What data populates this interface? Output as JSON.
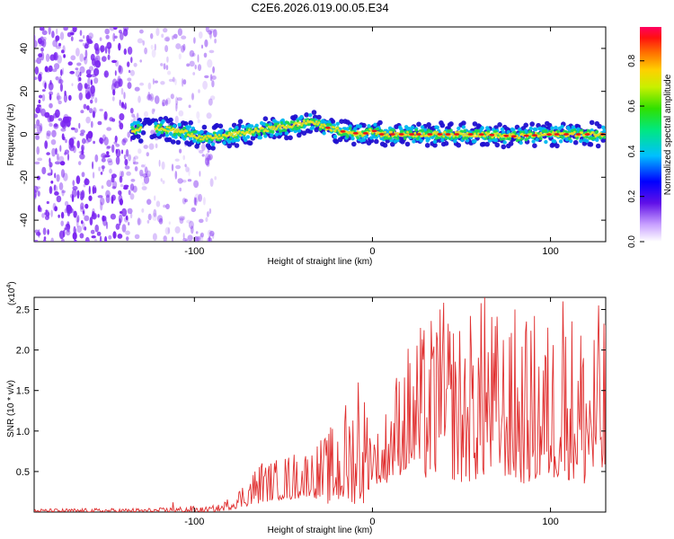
{
  "title": "C2E6.2026.019.00.05.E34",
  "colors": {
    "spectrum_background": "#ffffff",
    "snr_line": "#e03030",
    "scatter_purple": "#7a24f0"
  },
  "chart_data": [
    {
      "type": "heatmap",
      "name": "spectrogram",
      "xlabel": "Height of straight line (km)",
      "ylabel": "Frequency (Hz)",
      "xlim": [
        -190,
        131
      ],
      "ylim": [
        -50,
        50
      ],
      "x_ticks": [
        -100,
        0,
        100
      ],
      "y_ticks": [
        -40,
        -20,
        0,
        20,
        40
      ],
      "scatter_region_km": [
        -190,
        -88
      ],
      "signal_band": {
        "x": [
          -135,
          -120,
          -105,
          -95,
          -85,
          -70,
          -55,
          -45,
          -35,
          -25,
          -15,
          -5,
          0,
          5,
          20,
          40,
          60,
          80,
          100,
          120,
          131
        ],
        "center_hz": [
          2,
          3,
          1,
          -2,
          -1,
          1,
          3,
          4,
          6,
          3,
          1,
          0,
          2,
          0,
          0,
          0,
          0,
          -1,
          0,
          0,
          0
        ]
      },
      "colorbar": {
        "label": "Normalized spectral amplitude",
        "range": [
          0.0,
          0.95
        ],
        "ticks": [
          "0.0",
          "0.2",
          "0.4",
          "0.6",
          "0.8"
        ]
      }
    },
    {
      "type": "line",
      "name": "snr",
      "xlabel": "Height of straight line (km)",
      "ylabel": "SNR (10 * v/v)",
      "y_multiplier_label": "(x10",
      "y_multiplier_exp": "4",
      "y_multiplier_close": ")",
      "xlim": [
        -190,
        131
      ],
      "ylim": [
        0,
        2.65
      ],
      "x_ticks": [
        -100,
        0,
        100
      ],
      "y_tick_labels": [
        "0.5",
        "1.0",
        "1.5",
        "2.0",
        "2.5"
      ],
      "series": [
        {
          "name": "SNR",
          "envelope_x": [
            -190,
            -120,
            -100,
            -95,
            -85,
            -80,
            -75,
            -65,
            -55,
            -45,
            -35,
            -25,
            -15,
            -5,
            0,
            5,
            10,
            20,
            30,
            40,
            50,
            60,
            70,
            80,
            90,
            100,
            110,
            120,
            131
          ],
          "envelope_min": [
            0.0,
            0.0,
            0.0,
            0.0,
            0.01,
            0.03,
            0.05,
            0.1,
            0.15,
            0.15,
            0.2,
            0.1,
            0.1,
            0.1,
            0.4,
            0.3,
            0.4,
            0.5,
            0.4,
            0.45,
            0.35,
            0.4,
            0.5,
            0.35,
            0.35,
            0.4,
            0.4,
            0.3,
            0.35
          ],
          "envelope_max": [
            0.04,
            0.05,
            0.08,
            0.06,
            0.1,
            0.2,
            0.3,
            0.6,
            0.65,
            0.75,
            0.8,
            1.0,
            1.4,
            1.6,
            1.1,
            1.0,
            1.6,
            2.1,
            2.4,
            2.6,
            2.4,
            2.65,
            2.5,
            2.2,
            2.5,
            2.4,
            2.55,
            2.45,
            2.55
          ],
          "peaks": [
            {
              "x": 38,
              "y": 2.5
            },
            {
              "x": 63,
              "y": 2.65
            },
            {
              "x": 80,
              "y": 2.5
            },
            {
              "x": 107,
              "y": 2.6
            },
            {
              "x": 127,
              "y": 2.55
            },
            {
              "x": -8,
              "y": 1.6
            },
            {
              "x": -62,
              "y": 0.6
            },
            {
              "x": -112,
              "y": 0.12
            }
          ]
        }
      ]
    }
  ]
}
